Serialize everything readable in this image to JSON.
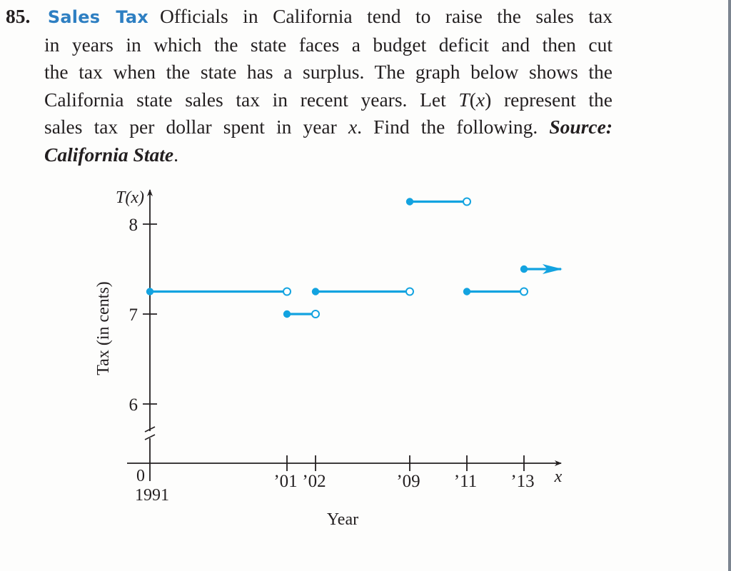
{
  "problem": {
    "number": "85.",
    "title": "Sales Tax",
    "lines": [
      "Officials in California tend to raise the sales tax",
      "in years in which the state faces a budget deficit and then cut",
      "the tax when the state has a surplus. The graph below shows the",
      "California state sales tax in recent years. Let ",
      "represent the",
      "sales tax per dollar spent in year ",
      ". Find the following. ",
      "Source:",
      "California State",
      "."
    ],
    "func_T": "T",
    "func_paren_open": "(",
    "func_x": "x",
    "func_paren_close": ")",
    "var_x": "x"
  },
  "colors": {
    "accent": "#2e7fc2",
    "series": "#13a3e0",
    "axis": "#231f20"
  },
  "chart_data": {
    "type": "step",
    "title": "",
    "xlabel": "Year",
    "ylabel": "Tax (in cents)",
    "y_axis_var": "T(x)",
    "x_axis_var": "x",
    "y_ticks": [
      "6",
      "7",
      "8"
    ],
    "y_tick_values": [
      6,
      7,
      8
    ],
    "ylim": [
      6,
      8.5
    ],
    "y_axis_break": true,
    "x_origin_label": "0",
    "x_origin_year_label": "1991",
    "x_ticks": [
      "’01",
      "’02",
      "’09",
      "’11",
      "’13"
    ],
    "x_tick_values": [
      2001,
      2002,
      2009,
      2011,
      2013
    ],
    "xlim": [
      1991,
      2015
    ],
    "segments": [
      {
        "x_start": 1991,
        "x_end": 2001,
        "value": 7.25,
        "start": "closed",
        "end": "open"
      },
      {
        "x_start": 2001,
        "x_end": 2002,
        "value": 7.0,
        "start": "closed",
        "end": "open"
      },
      {
        "x_start": 2002,
        "x_end": 2009,
        "value": 7.25,
        "start": "closed",
        "end": "open"
      },
      {
        "x_start": 2009,
        "x_end": 2011,
        "value": 8.25,
        "start": "closed",
        "end": "open"
      },
      {
        "x_start": 2011,
        "x_end": 2013,
        "value": 7.25,
        "start": "closed",
        "end": "open"
      },
      {
        "x_start": 2013,
        "x_end": null,
        "value": 7.5,
        "start": "closed",
        "end": "arrow"
      }
    ]
  }
}
